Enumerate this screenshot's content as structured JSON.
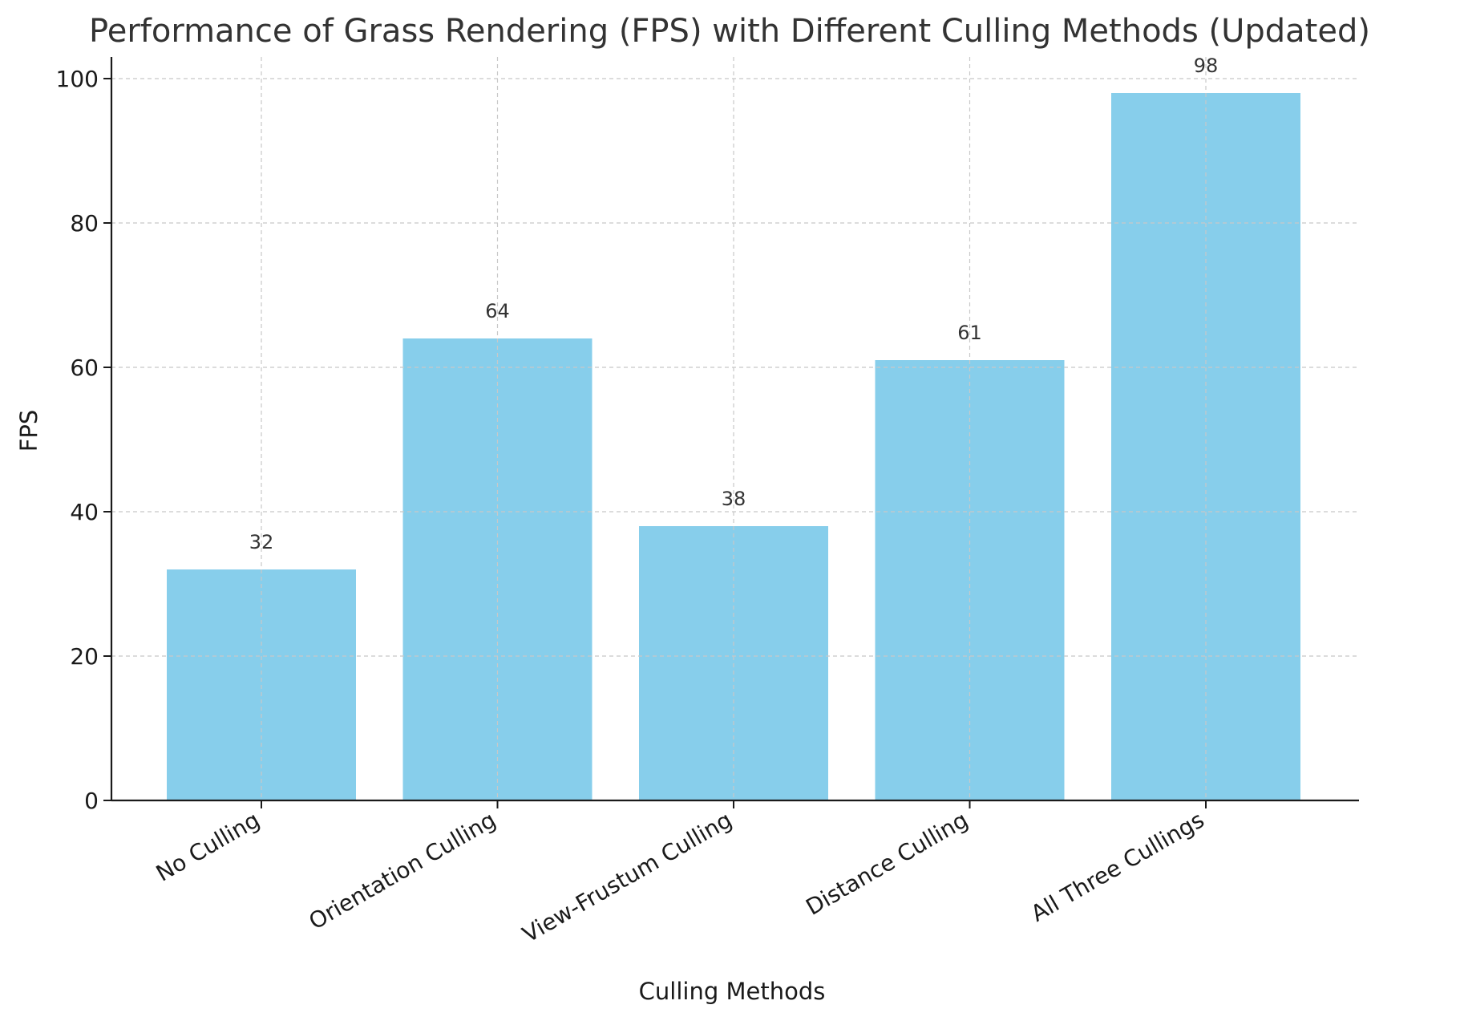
{
  "chart_data": {
    "type": "bar",
    "title": "Performance of Grass Rendering (FPS) with Different Culling Methods (Updated)",
    "xlabel": "Culling Methods",
    "ylabel": "FPS",
    "categories": [
      "No Culling",
      "Orientation Culling",
      "View-Frustum Culling",
      "Distance Culling",
      "All Three Cullings"
    ],
    "values": [
      32,
      64,
      38,
      61,
      98
    ],
    "data_labels": [
      "32",
      "64",
      "38",
      "61",
      "98"
    ],
    "ylim": [
      0,
      103
    ],
    "yticks": [
      0,
      20,
      40,
      60,
      80,
      100
    ],
    "ytick_labels": [
      "0",
      "20",
      "40",
      "60",
      "80",
      "100"
    ],
    "grid": true,
    "bar_color": "#87CEEB"
  }
}
